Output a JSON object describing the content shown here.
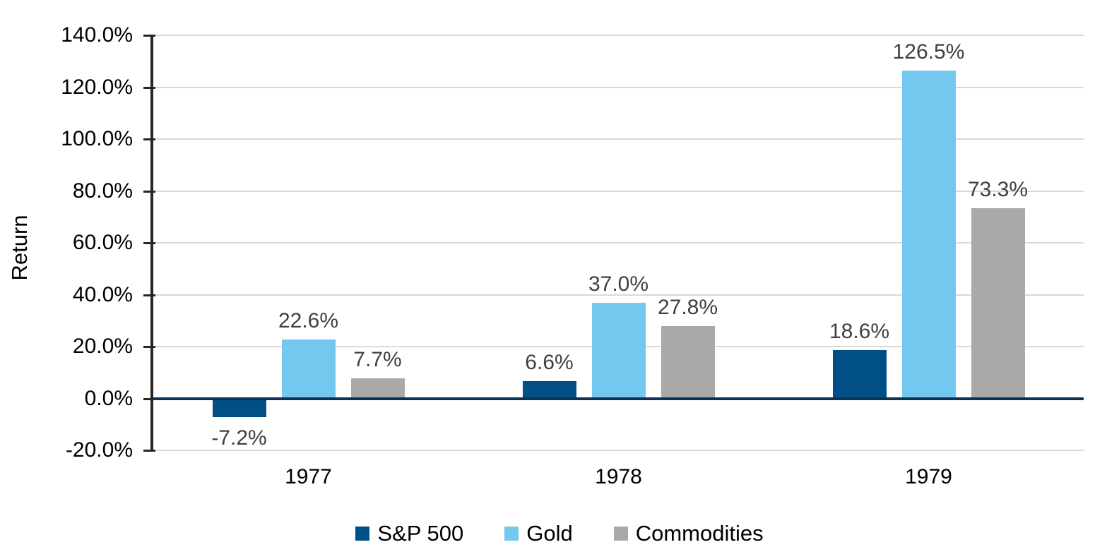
{
  "chart_data": {
    "type": "bar",
    "title": "",
    "xlabel": "",
    "ylabel": "Return",
    "categories": [
      "1977",
      "1978",
      "1979"
    ],
    "series": [
      {
        "key": "sp500",
        "name": "S&P 500",
        "color": "#004F86",
        "values": [
          -7.2,
          6.6,
          18.6
        ],
        "data_labels": [
          "-7.2%",
          "6.6%",
          "18.6%"
        ]
      },
      {
        "key": "gold",
        "name": "Gold",
        "color": "#74C8F0",
        "values": [
          22.6,
          37.0,
          126.5
        ],
        "data_labels": [
          "22.6%",
          "37.0%",
          "126.5%"
        ]
      },
      {
        "key": "commodities",
        "name": "Commodities",
        "color": "#A9A9A9",
        "values": [
          7.7,
          27.8,
          73.3
        ],
        "data_labels": [
          "7.7%",
          "27.8%",
          "73.3%"
        ]
      }
    ],
    "ylim": [
      -20,
      140
    ],
    "ytick_values": [
      140,
      120,
      100,
      80,
      60,
      40,
      20,
      0,
      -20
    ],
    "ytick_labels": [
      "140.0%",
      "120.0%",
      "100.0%",
      "80.0%",
      "60.0%",
      "40.0%",
      "20.0%",
      "0.0%",
      "-20.0%"
    ],
    "grid": true,
    "legend_position": "bottom",
    "colors": {
      "gridline": "#D9D9D9",
      "axis_line": "#262626",
      "zero_line": "#0A3254",
      "data_label": "#404040",
      "tick_label": "#000000"
    }
  }
}
